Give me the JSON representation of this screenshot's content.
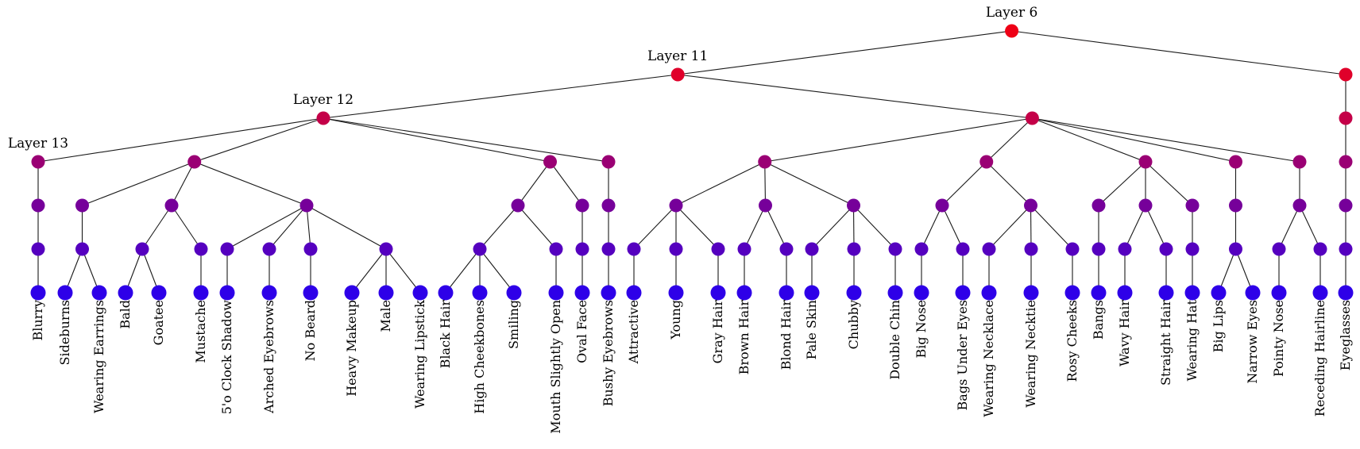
{
  "layer_labels": [
    "Layer 6",
    "Layer 11",
    "Layer 12",
    "Layer 13"
  ],
  "colors": {
    "depth0": "#ee0016",
    "depth1": "#e0002a",
    "depth2": "#c40048",
    "depth3": "#9a0074",
    "depth4": "#76009a",
    "depth5": "#5500bf",
    "depth6": "#2e00e8",
    "edge": "#1a1a1a",
    "background": "#ffffff"
  },
  "leaves": [
    "Blurry",
    "Sideburns",
    "Wearing Earrings",
    "Bald",
    "Goatee",
    "Mustache",
    "5'o Clock Shadow",
    "Arched Eyebrows",
    "No Beard",
    "Heavy Makeup",
    "Male",
    "Wearing Lipstick",
    "Black Hair",
    "High Cheekbones",
    "Smiling",
    "Mouth Slightly Open",
    "Oval Face",
    "Bushy Eyebrows",
    "Attractive",
    "Young",
    "Gray Hair",
    "Brown Hair",
    "Blond Hair",
    "Pale Skin",
    "Chubby",
    "Double Chin",
    "Big Nose",
    "Bags Under Eyes",
    "Wearing Necklace",
    "Wearing Necktie",
    "Rosy Cheeks",
    "Bangs",
    "Wavy Hair",
    "Straight Hair",
    "Wearing Hat",
    "Big Lips",
    "Narrow Eyes",
    "Pointy Nose",
    "Receding Hairline",
    "Eyeglasses"
  ],
  "tree": {
    "label": "Layer 6",
    "children": [
      {
        "label": "Layer 11",
        "children": [
          {
            "label": "Layer 12",
            "children": [
              {
                "label": "Layer 13",
                "children": [
                  {
                    "children": [
                      {
                        "children": [
                          {
                            "leaf": 0
                          }
                        ]
                      }
                    ]
                  }
                ]
              },
              {
                "children": [
                  {
                    "children": [
                      {
                        "children": [
                          {
                            "leaf": 1
                          },
                          {
                            "leaf": 2
                          }
                        ]
                      }
                    ]
                  },
                  {
                    "children": [
                      {
                        "children": [
                          {
                            "leaf": 3
                          },
                          {
                            "leaf": 4
                          }
                        ]
                      },
                      {
                        "children": [
                          {
                            "leaf": 5
                          }
                        ]
                      }
                    ]
                  },
                  {
                    "children": [
                      {
                        "children": [
                          {
                            "leaf": 6
                          }
                        ]
                      },
                      {
                        "children": [
                          {
                            "leaf": 7
                          }
                        ]
                      },
                      {
                        "children": [
                          {
                            "leaf": 8
                          }
                        ]
                      },
                      {
                        "children": [
                          {
                            "leaf": 9
                          },
                          {
                            "leaf": 10
                          },
                          {
                            "leaf": 11
                          }
                        ]
                      }
                    ]
                  }
                ]
              },
              {
                "children": [
                  {
                    "children": [
                      {
                        "children": [
                          {
                            "leaf": 12
                          },
                          {
                            "leaf": 13
                          },
                          {
                            "leaf": 14
                          }
                        ]
                      },
                      {
                        "children": [
                          {
                            "leaf": 15
                          }
                        ]
                      }
                    ]
                  },
                  {
                    "children": [
                      {
                        "children": [
                          {
                            "leaf": 16
                          }
                        ]
                      }
                    ]
                  }
                ]
              },
              {
                "children": [
                  {
                    "children": [
                      {
                        "children": [
                          {
                            "leaf": 17
                          }
                        ]
                      }
                    ]
                  }
                ]
              }
            ]
          },
          {
            "children": [
              {
                "children": [
                  {
                    "children": [
                      {
                        "children": [
                          {
                            "leaf": 18
                          }
                        ]
                      },
                      {
                        "children": [
                          {
                            "leaf": 19
                          }
                        ]
                      },
                      {
                        "children": [
                          {
                            "leaf": 20
                          }
                        ]
                      }
                    ]
                  },
                  {
                    "children": [
                      {
                        "children": [
                          {
                            "leaf": 21
                          }
                        ]
                      },
                      {
                        "children": [
                          {
                            "leaf": 22
                          }
                        ]
                      }
                    ]
                  },
                  {
                    "children": [
                      {
                        "children": [
                          {
                            "leaf": 23
                          }
                        ]
                      },
                      {
                        "children": [
                          {
                            "leaf": 24
                          }
                        ]
                      },
                      {
                        "children": [
                          {
                            "leaf": 25
                          }
                        ]
                      }
                    ]
                  }
                ]
              },
              {
                "children": [
                  {
                    "children": [
                      {
                        "children": [
                          {
                            "leaf": 26
                          }
                        ]
                      },
                      {
                        "children": [
                          {
                            "leaf": 27
                          }
                        ]
                      }
                    ]
                  },
                  {
                    "children": [
                      {
                        "children": [
                          {
                            "leaf": 28
                          }
                        ]
                      },
                      {
                        "children": [
                          {
                            "leaf": 29
                          }
                        ]
                      },
                      {
                        "children": [
                          {
                            "leaf": 30
                          }
                        ]
                      }
                    ]
                  }
                ]
              },
              {
                "children": [
                  {
                    "children": [
                      {
                        "children": [
                          {
                            "leaf": 31
                          }
                        ]
                      }
                    ]
                  },
                  {
                    "children": [
                      {
                        "children": [
                          {
                            "leaf": 32
                          }
                        ]
                      },
                      {
                        "children": [
                          {
                            "leaf": 33
                          }
                        ]
                      }
                    ]
                  },
                  {
                    "children": [
                      {
                        "children": [
                          {
                            "leaf": 34
                          }
                        ]
                      }
                    ]
                  }
                ]
              },
              {
                "children": [
                  {
                    "children": [
                      {
                        "children": [
                          {
                            "leaf": 35
                          },
                          {
                            "leaf": 36
                          }
                        ]
                      }
                    ]
                  }
                ]
              },
              {
                "children": [
                  {
                    "children": [
                      {
                        "children": [
                          {
                            "leaf": 37
                          }
                        ]
                      },
                      {
                        "children": [
                          {
                            "leaf": 38
                          }
                        ]
                      }
                    ]
                  }
                ]
              }
            ]
          }
        ]
      },
      {
        "children": [
          {
            "children": [
              {
                "children": [
                  {
                    "children": [
                      {
                        "children": [
                          {
                            "children": [
                              {
                                "leaf": 39
                              }
                            ]
                          }
                        ]
                      }
                    ]
                  }
                ]
              }
            ]
          }
        ]
      }
    ]
  }
}
